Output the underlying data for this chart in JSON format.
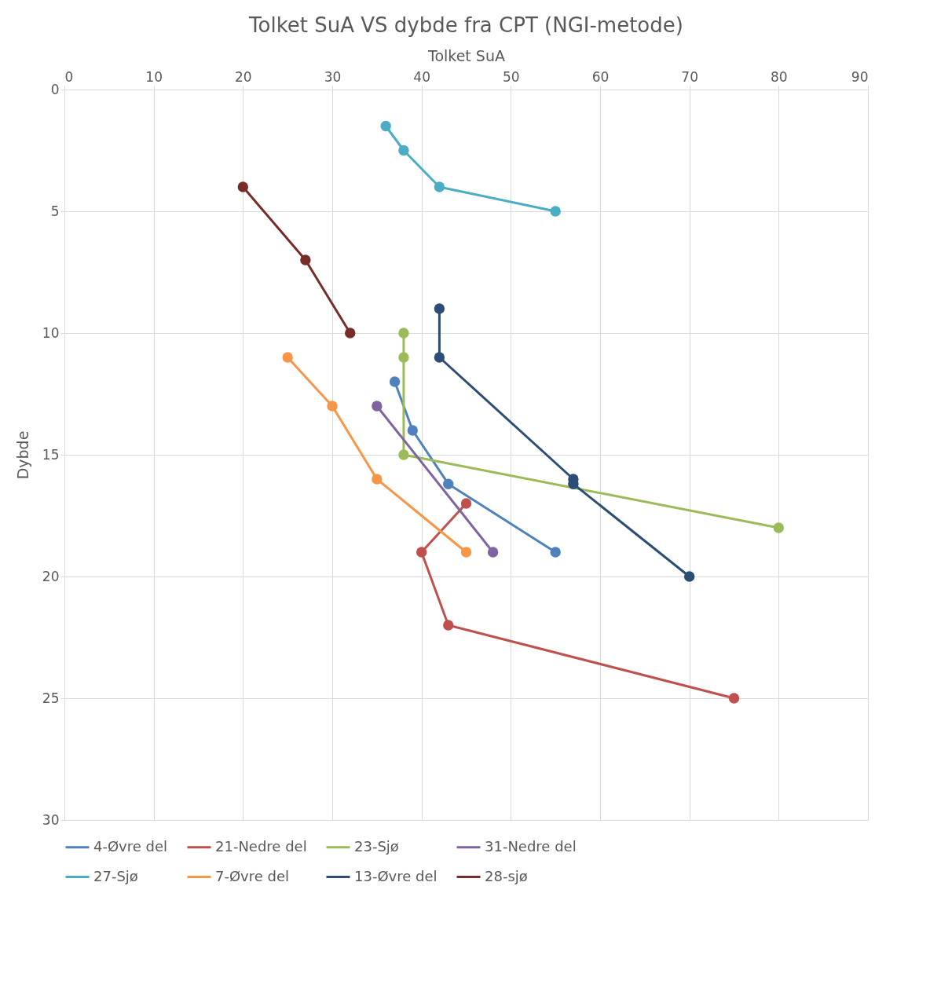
{
  "chart_data": {
    "type": "line",
    "title": "Tolket SuA VS dybde fra CPT (NGI-metode)",
    "xlabel": "Tolket SuA",
    "ylabel": "Dybde",
    "xlim": [
      0,
      90
    ],
    "xticks": [
      0,
      10,
      20,
      30,
      40,
      50,
      60,
      70,
      80,
      90
    ],
    "ylim": [
      30,
      0
    ],
    "yticks": [
      0,
      5,
      10,
      15,
      20,
      25,
      30
    ],
    "grid": true,
    "legend": "bottom",
    "marker": "circle",
    "line_style": "solid",
    "series": [
      {
        "name": "4-Øvre del",
        "color": "#4f81bd",
        "x": [
          37,
          39,
          43,
          55
        ],
        "values": [
          12,
          14,
          16.2,
          19
        ]
      },
      {
        "name": "21-Nedre del",
        "color": "#c0504d",
        "x": [
          45,
          40,
          43,
          75
        ],
        "values": [
          17,
          19,
          22,
          25
        ]
      },
      {
        "name": "23-Sjø",
        "color": "#9bbb59",
        "x": [
          38,
          38,
          38,
          80
        ],
        "values": [
          10,
          11,
          15,
          18
        ]
      },
      {
        "name": "31-Nedre del",
        "color": "#8064a2",
        "x": [
          35,
          48
        ],
        "values": [
          13,
          19
        ]
      },
      {
        "name": "27-Sjø",
        "color": "#4bacc6",
        "x": [
          36,
          38,
          42,
          55
        ],
        "values": [
          1.5,
          2.5,
          4,
          5
        ]
      },
      {
        "name": "7-Øvre del",
        "color": "#f79646",
        "x": [
          25,
          30,
          35,
          45
        ],
        "values": [
          11,
          13,
          16,
          19
        ]
      },
      {
        "name": "13-Øvre del",
        "color": "#2c4d75",
        "x": [
          42,
          42,
          57,
          57,
          70
        ],
        "values": [
          9,
          11,
          16,
          16.2,
          20
        ]
      },
      {
        "name": "28-sjø",
        "color": "#772c2a",
        "x": [
          20,
          27,
          32
        ],
        "values": [
          4,
          7,
          10
        ]
      }
    ]
  }
}
